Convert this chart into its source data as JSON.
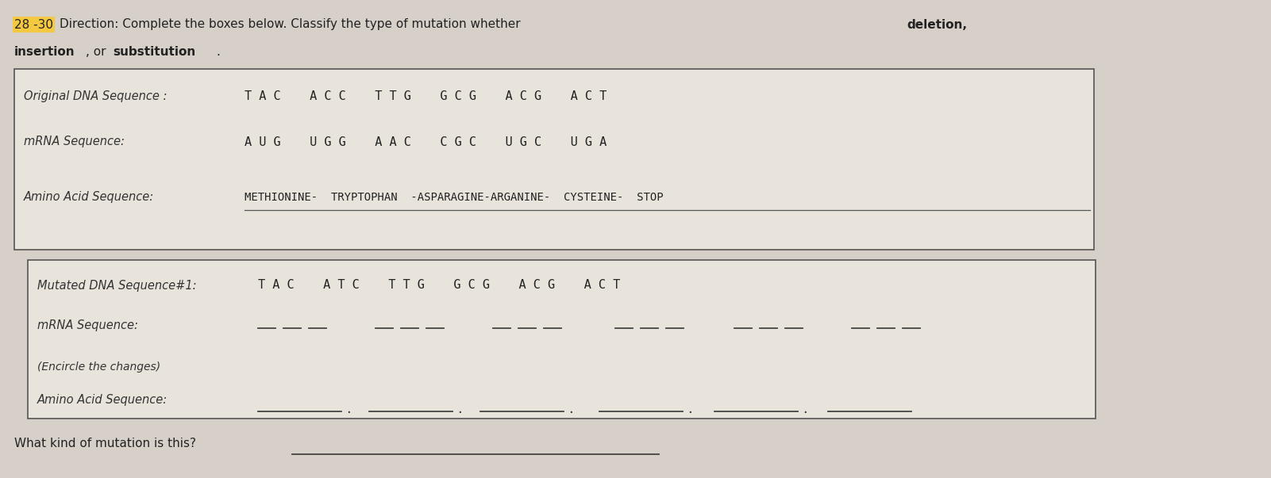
{
  "bg_color": "#d6d0c8",
  "paper_color": "#e8e4dc",
  "question_number": "28 -30",
  "highlight_color": "#f5c842",
  "box1": {
    "label_orig_dna": "Original DNA Sequence :",
    "orig_dna": "T A C    A C C    T T G    G C G    A C G    A C T",
    "label_mrna": "mRNA Sequence:",
    "mrna": "A U G    U G G    A A C    C G C    U G C    U G A",
    "label_amino": "Amino Acid Sequence:",
    "amino": "METHIONINE-  TRYPTOPHAN  -ASPARAGINE-ARGANINE-  CYSTEINE-  STOP"
  },
  "box2": {
    "label_mut_dna": "Mutated DNA Sequence#1:",
    "mut_dna": "T A C    A T C    T T G    G C G    A C G    A C T",
    "label_mrna": "mRNA Sequence:",
    "label_encircle": "(Encircle the changes)",
    "label_amino": "Amino Acid Sequence:"
  },
  "footer": "What kind of mutation is this?"
}
